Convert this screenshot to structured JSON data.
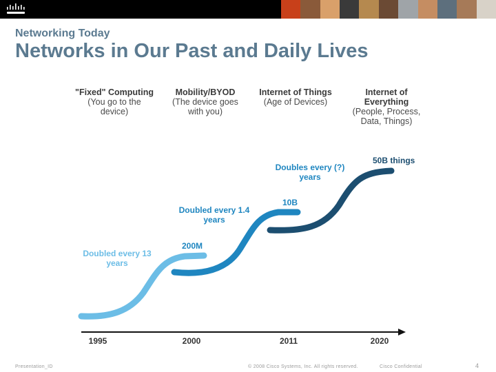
{
  "header": {
    "section_title": "Networking Today",
    "slide_title": "Networks in Our Past and Daily Lives"
  },
  "columns": [
    {
      "bold": "\"Fixed\" Computing",
      "sub": "(You go to the device)"
    },
    {
      "bold": "Mobility/BYOD",
      "sub": "(The device goes with you)"
    },
    {
      "bold": "Internet of Things",
      "sub": "(Age of Devices)"
    },
    {
      "bold": "Internet of Everything",
      "sub": "(People, Process, Data, Things)"
    }
  ],
  "growth_notes": [
    {
      "text": "Doubled every 13 years"
    },
    {
      "text": "Doubled every 1.4 years"
    },
    {
      "text": "Doubles every (?) years"
    }
  ],
  "milestones": [
    {
      "label": "200M"
    },
    {
      "label": "10B"
    },
    {
      "label": "50B things"
    }
  ],
  "timeline": {
    "years": [
      "1995",
      "2000",
      "2011",
      "2020"
    ]
  },
  "colors": {
    "title": "#5b7a90",
    "curve1": "#6cbde6",
    "curve2": "#1f86c0",
    "curve3": "#1c4e70"
  },
  "footer": {
    "presentation": "Presentation_ID",
    "copyright": "© 2008 Cisco Systems, Inc. All rights reserved.",
    "confidential": "Cisco Confidential",
    "page": "4"
  }
}
